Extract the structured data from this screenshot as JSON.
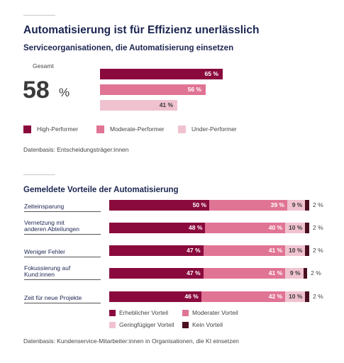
{
  "title": "Automatisierung ist für Effizienz unerlässlich",
  "section1": {
    "subtitle": "Serviceorganisationen, die Automatisierung einsetzen",
    "total_label": "Gesamt",
    "total_value": "58",
    "total_unit": "%",
    "footnote": "Datenbasis: Entscheidungsträger:innen"
  },
  "section2": {
    "subtitle": "Gemeldete Vorteile der Automatisierung",
    "footnote": "Datenbasis: Kundenservice-Mitarbeiter:innen in Organisationen, die KI einsetzen"
  },
  "colors": {
    "dark": "#8a0a3d",
    "mid": "#e07494",
    "light": "#f0c2cf",
    "darkest": "#4a1020"
  },
  "chart_data": [
    {
      "type": "bar",
      "orientation": "horizontal",
      "title": "Serviceorganisationen, die Automatisierung einsetzen",
      "categories": [
        "High-Performer",
        "Moderate-Performer",
        "Under-Performer"
      ],
      "values": [
        65,
        56,
        41
      ],
      "labels": [
        "65 %",
        "56 %",
        "41 %"
      ],
      "legend": [
        "High-Performer",
        "Moderate-Performer",
        "Under-Performer"
      ],
      "legend_position": "bottom",
      "unit": "%"
    },
    {
      "type": "bar",
      "orientation": "horizontal",
      "stacked": true,
      "title": "Gemeldete Vorteile der Automatisierung",
      "categories": [
        [
          "Zeiteinsparung"
        ],
        [
          "Vernetzung mit",
          "anderen Abteilungen"
        ],
        [
          "Weniger Fehler"
        ],
        [
          "Fokussierung auf",
          "Kund:innen"
        ],
        [
          "Zeit für neue Projekte"
        ]
      ],
      "series": [
        {
          "name": "Erheblicher Vorteil",
          "values": [
            50,
            48,
            47,
            47,
            46
          ],
          "labels": [
            "50 %",
            "48 %",
            "47 %",
            "47 %",
            "46 %"
          ]
        },
        {
          "name": "Moderater Vorteil",
          "values": [
            39,
            40,
            41,
            41,
            42
          ],
          "labels": [
            "39 %",
            "40 %",
            "41 %",
            "41 %",
            "42 %"
          ]
        },
        {
          "name": "Geringfügiger Vorteil",
          "values": [
            9,
            10,
            10,
            9,
            10
          ],
          "labels": [
            "9 %",
            "10 %",
            "10 %",
            "9 %",
            "10 %"
          ]
        },
        {
          "name": "Kein Vorteil",
          "values": [
            2,
            2,
            2,
            2,
            2
          ],
          "labels": [
            "2 %",
            "2 %",
            "2 %",
            "2 %",
            "2 %"
          ]
        }
      ],
      "legend_position": "bottom",
      "unit": "%"
    }
  ]
}
